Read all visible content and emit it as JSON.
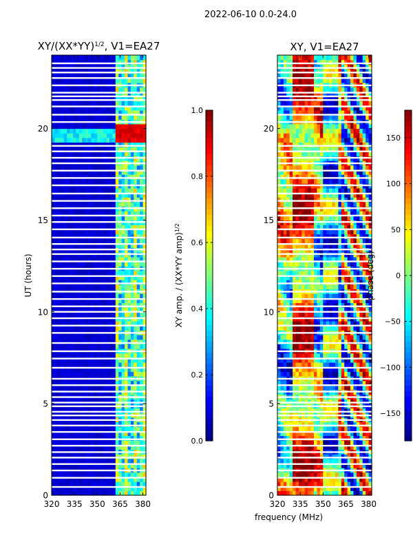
{
  "suptitle": "2022-06-10 0.0-24.0",
  "chart_data": [
    {
      "type": "heatmap",
      "title": "XY/(XX*YY)",
      "title_exponent": "1/2",
      "title_suffix": ", V1=EA27",
      "xlabel": "",
      "ylabel": "UT (hours)",
      "xlim": [
        320,
        382
      ],
      "ylim": [
        0,
        24
      ],
      "xticks": [
        "320",
        "335",
        "350",
        "365",
        "380"
      ],
      "xtick_values": [
        320,
        335,
        350,
        365,
        380
      ],
      "yticks": [
        "0",
        "5",
        "10",
        "15",
        "20"
      ],
      "ytick_values": [
        0,
        5,
        10,
        15,
        20
      ],
      "colorbar": {
        "label": "XY amp. / (XX*YY amp)",
        "label_exponent": "1/2",
        "range": [
          0,
          1
        ],
        "ticks": [
          "0.0",
          "0.2",
          "0.4",
          "0.6",
          "0.8",
          "1.0"
        ],
        "tick_values": [
          0.0,
          0.2,
          0.4,
          0.6,
          0.8,
          1.0
        ],
        "colormap": "jet"
      },
      "features": {
        "low_freq_value": 0.08,
        "high_freq_band_MHz": [
          362,
          381
        ],
        "high_freq_value": 0.4,
        "bright_event_UT": [
          19.2,
          20.3
        ],
        "bright_event_value": 0.9
      }
    },
    {
      "type": "heatmap",
      "title": "XY, V1=EA27",
      "xlabel": "frequency (MHz)",
      "ylabel": "",
      "xlim": [
        320,
        382
      ],
      "ylim": [
        0,
        24
      ],
      "xticks": [
        "320",
        "335",
        "350",
        "365",
        "380"
      ],
      "xtick_values": [
        320,
        335,
        350,
        365,
        380
      ],
      "yticks": [
        "0",
        "5",
        "10",
        "15",
        "20"
      ],
      "ytick_values": [
        0,
        5,
        10,
        15,
        20
      ],
      "colorbar": {
        "label": "phase (deg)",
        "range": [
          -180,
          180
        ],
        "ticks": [
          "−150",
          "−100",
          "−50",
          "0",
          "50",
          "100",
          "150"
        ],
        "tick_values": [
          -150,
          -100,
          -50,
          0,
          50,
          100,
          150
        ],
        "colormap": "jet"
      }
    }
  ],
  "flagged_rows_UT": [
    0.45,
    0.95,
    1.35,
    1.7,
    2.05,
    2.35,
    2.7,
    3.05,
    3.45,
    3.8,
    4.1,
    4.35,
    4.55,
    4.85,
    5.05,
    5.35,
    5.65,
    6.0,
    6.35,
    6.95,
    7.45,
    7.85,
    8.3,
    8.85,
    9.25,
    9.65,
    10.0,
    10.3,
    10.7,
    11.1,
    11.55,
    11.95,
    12.35,
    12.75,
    13.15,
    13.4,
    13.7,
    14.05,
    14.5,
    14.9,
    15.25,
    15.65,
    16.05,
    16.45,
    16.9,
    17.3,
    17.7,
    18.1,
    18.4,
    18.75,
    19.05,
    20.35,
    20.75,
    21.2,
    21.55,
    21.75,
    21.95,
    22.35,
    22.75,
    23.05,
    23.3,
    23.55
  ]
}
